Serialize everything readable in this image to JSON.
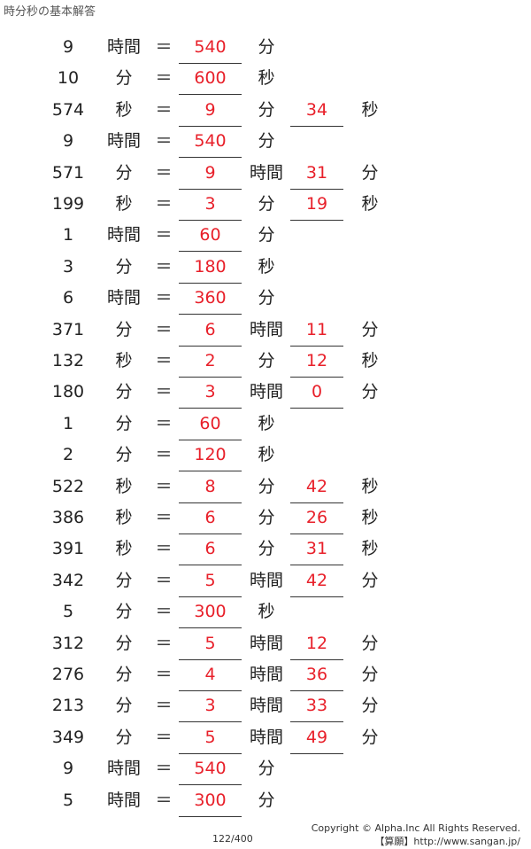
{
  "title": "時分秒の基本解答",
  "rows": [
    [
      "9",
      "時間",
      "＝",
      "540",
      "分",
      "",
      ""
    ],
    [
      "10",
      "分",
      "＝",
      "600",
      "秒",
      "",
      ""
    ],
    [
      "574",
      "秒",
      "＝",
      "9",
      "分",
      "34",
      "秒"
    ],
    [
      "9",
      "時間",
      "＝",
      "540",
      "分",
      "",
      ""
    ],
    [
      "571",
      "分",
      "＝",
      "9",
      "時間",
      "31",
      "分"
    ],
    [
      "199",
      "秒",
      "＝",
      "3",
      "分",
      "19",
      "秒"
    ],
    [
      "1",
      "時間",
      "＝",
      "60",
      "分",
      "",
      ""
    ],
    [
      "3",
      "分",
      "＝",
      "180",
      "秒",
      "",
      ""
    ],
    [
      "6",
      "時間",
      "＝",
      "360",
      "分",
      "",
      ""
    ],
    [
      "371",
      "分",
      "＝",
      "6",
      "時間",
      "11",
      "分"
    ],
    [
      "132",
      "秒",
      "＝",
      "2",
      "分",
      "12",
      "秒"
    ],
    [
      "180",
      "分",
      "＝",
      "3",
      "時間",
      "0",
      "分"
    ],
    [
      "1",
      "分",
      "＝",
      "60",
      "秒",
      "",
      ""
    ],
    [
      "2",
      "分",
      "＝",
      "120",
      "秒",
      "",
      ""
    ],
    [
      "522",
      "秒",
      "＝",
      "8",
      "分",
      "42",
      "秒"
    ],
    [
      "386",
      "秒",
      "＝",
      "6",
      "分",
      "26",
      "秒"
    ],
    [
      "391",
      "秒",
      "＝",
      "6",
      "分",
      "31",
      "秒"
    ],
    [
      "342",
      "分",
      "＝",
      "5",
      "時間",
      "42",
      "分"
    ],
    [
      "5",
      "分",
      "＝",
      "300",
      "秒",
      "",
      ""
    ],
    [
      "312",
      "分",
      "＝",
      "5",
      "時間",
      "12",
      "分"
    ],
    [
      "276",
      "分",
      "＝",
      "4",
      "時間",
      "36",
      "分"
    ],
    [
      "213",
      "分",
      "＝",
      "3",
      "時間",
      "33",
      "分"
    ],
    [
      "349",
      "分",
      "＝",
      "5",
      "時間",
      "49",
      "分"
    ],
    [
      "9",
      "時間",
      "＝",
      "540",
      "分",
      "",
      ""
    ],
    [
      "5",
      "時間",
      "＝",
      "300",
      "分",
      "",
      ""
    ]
  ],
  "footer": {
    "page": "122/400",
    "copyright": "Copyright © Alpha.Inc All Rights Reserved.",
    "site": "【算願】http://www.sangan.jp/"
  },
  "colors": {
    "answer": "#e8202a"
  }
}
